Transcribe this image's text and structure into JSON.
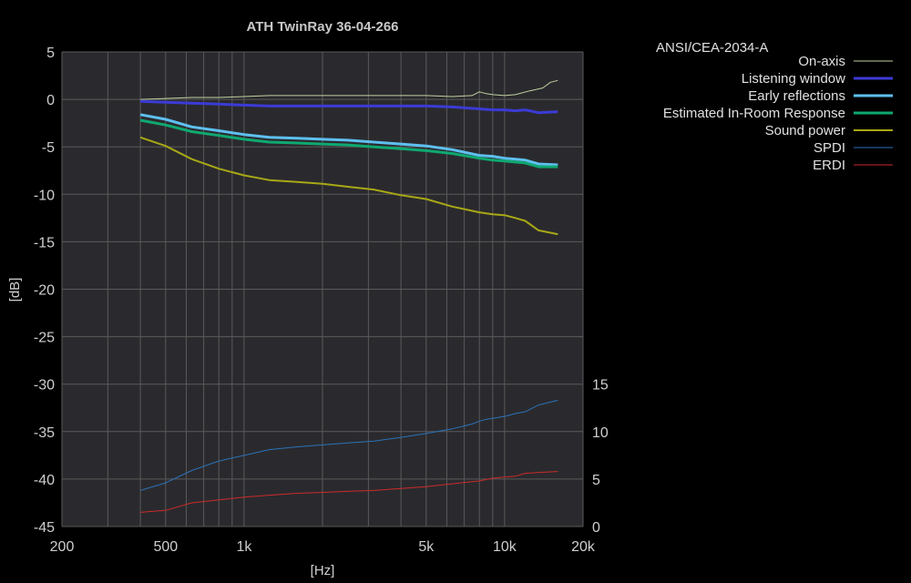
{
  "chart_data": {
    "type": "line",
    "title": "ATH TwinRay 36-04-266",
    "xlabel": "[Hz]",
    "ylabel": "[dB]",
    "xscale": "log",
    "xlim": [
      200,
      20000
    ],
    "ylim": [
      -45,
      5
    ],
    "y2lim": [
      0,
      50
    ],
    "grid": true,
    "legend_title": "ANSI/CEA-2034-A",
    "legend_position": "top-right, outside plot",
    "x_ticks": [
      {
        "value": 200,
        "label": "200"
      },
      {
        "value": 500,
        "label": "500"
      },
      {
        "value": 1000,
        "label": "1k"
      },
      {
        "value": 5000,
        "label": "5k"
      },
      {
        "value": 10000,
        "label": "10k"
      },
      {
        "value": 20000,
        "label": "20k"
      }
    ],
    "y_ticks": [
      5,
      0,
      -5,
      -10,
      -15,
      -20,
      -25,
      -30,
      -35,
      -40,
      -45
    ],
    "y2_ticks": [
      15,
      10,
      5,
      0
    ],
    "colors": {
      "background": "#000000",
      "plot_background": "#2a2a2e",
      "grid": "#5a5a5a"
    },
    "series": [
      {
        "name": "On-axis",
        "color": "#c2d2a0",
        "width": 1,
        "axis": "left",
        "x": [
          400,
          500,
          630,
          800,
          1000,
          1250,
          1600,
          2000,
          2500,
          3150,
          4000,
          5000,
          6300,
          7500,
          8000,
          8500,
          9000,
          10000,
          11000,
          12500,
          14000,
          15000,
          16000
        ],
        "values": [
          0.0,
          0.1,
          0.2,
          0.2,
          0.3,
          0.4,
          0.4,
          0.4,
          0.4,
          0.4,
          0.4,
          0.4,
          0.3,
          0.4,
          0.8,
          0.6,
          0.5,
          0.4,
          0.5,
          0.9,
          1.2,
          1.8,
          2.0
        ]
      },
      {
        "name": "Listening window",
        "color": "#3b3bd6",
        "width": 3,
        "axis": "left",
        "x": [
          400,
          500,
          630,
          800,
          1000,
          1250,
          1600,
          2000,
          2500,
          3150,
          4000,
          5000,
          6300,
          8000,
          9000,
          10000,
          11000,
          12000,
          13500,
          16000
        ],
        "values": [
          -0.2,
          -0.3,
          -0.4,
          -0.5,
          -0.6,
          -0.7,
          -0.7,
          -0.7,
          -0.7,
          -0.7,
          -0.7,
          -0.7,
          -0.8,
          -1.0,
          -1.1,
          -1.1,
          -1.2,
          -1.1,
          -1.4,
          -1.3
        ]
      },
      {
        "name": "Early reflections",
        "color": "#5ec0f0",
        "width": 3,
        "axis": "left",
        "x": [
          400,
          500,
          630,
          800,
          1000,
          1250,
          1600,
          2000,
          2500,
          3150,
          4000,
          5000,
          6300,
          8000,
          9000,
          10000,
          11000,
          12000,
          13500,
          16000
        ],
        "values": [
          -1.6,
          -2.1,
          -2.9,
          -3.3,
          -3.7,
          -4.0,
          -4.1,
          -4.2,
          -4.3,
          -4.5,
          -4.7,
          -4.9,
          -5.3,
          -5.9,
          -6.0,
          -6.2,
          -6.3,
          -6.4,
          -6.8,
          -6.9
        ]
      },
      {
        "name": "Estimated In-Room Response",
        "color": "#0fa870",
        "width": 3,
        "axis": "left",
        "x": [
          400,
          500,
          630,
          800,
          1000,
          1250,
          1600,
          2000,
          2500,
          3150,
          4000,
          5000,
          6300,
          8000,
          9000,
          10000,
          11000,
          12000,
          13500,
          16000
        ],
        "values": [
          -2.2,
          -2.7,
          -3.4,
          -3.8,
          -4.2,
          -4.5,
          -4.6,
          -4.7,
          -4.8,
          -5.0,
          -5.2,
          -5.4,
          -5.7,
          -6.2,
          -6.4,
          -6.5,
          -6.6,
          -6.7,
          -7.1,
          -7.1
        ]
      },
      {
        "name": "Sound power",
        "color": "#a8a816",
        "width": 2,
        "axis": "left",
        "x": [
          400,
          500,
          630,
          800,
          1000,
          1250,
          1600,
          2000,
          2500,
          3150,
          4000,
          5000,
          6300,
          8000,
          9000,
          10000,
          11000,
          12000,
          13500,
          16000
        ],
        "values": [
          -4.0,
          -4.9,
          -6.3,
          -7.3,
          -8.0,
          -8.5,
          -8.7,
          -8.9,
          -9.2,
          -9.5,
          -10.1,
          -10.5,
          -11.3,
          -11.9,
          -12.1,
          -12.2,
          -12.5,
          -12.8,
          -13.8,
          -14.2
        ]
      },
      {
        "name": "SPDI",
        "color": "#2a72b8",
        "width": 1,
        "axis": "right",
        "x": [
          400,
          500,
          630,
          800,
          1000,
          1250,
          1600,
          2000,
          2500,
          3150,
          4000,
          5000,
          6300,
          7500,
          8000,
          8500,
          9000,
          10000,
          11000,
          12000,
          13500,
          16000
        ],
        "values": [
          3.8,
          4.6,
          5.9,
          6.9,
          7.5,
          8.1,
          8.4,
          8.6,
          8.8,
          9.0,
          9.4,
          9.8,
          10.3,
          10.8,
          11.1,
          11.3,
          11.4,
          11.6,
          11.9,
          12.1,
          12.8,
          13.3
        ]
      },
      {
        "name": "ERDI",
        "color": "#cc2a2a",
        "width": 1,
        "axis": "right",
        "x": [
          400,
          500,
          630,
          800,
          1000,
          1250,
          1600,
          2000,
          2500,
          3150,
          4000,
          5000,
          6300,
          8000,
          9000,
          10000,
          11000,
          12000,
          13500,
          16000
        ],
        "values": [
          1.5,
          1.7,
          2.5,
          2.8,
          3.1,
          3.3,
          3.5,
          3.6,
          3.7,
          3.8,
          4.0,
          4.2,
          4.5,
          4.8,
          5.1,
          5.2,
          5.3,
          5.6,
          5.7,
          5.8
        ]
      }
    ]
  }
}
